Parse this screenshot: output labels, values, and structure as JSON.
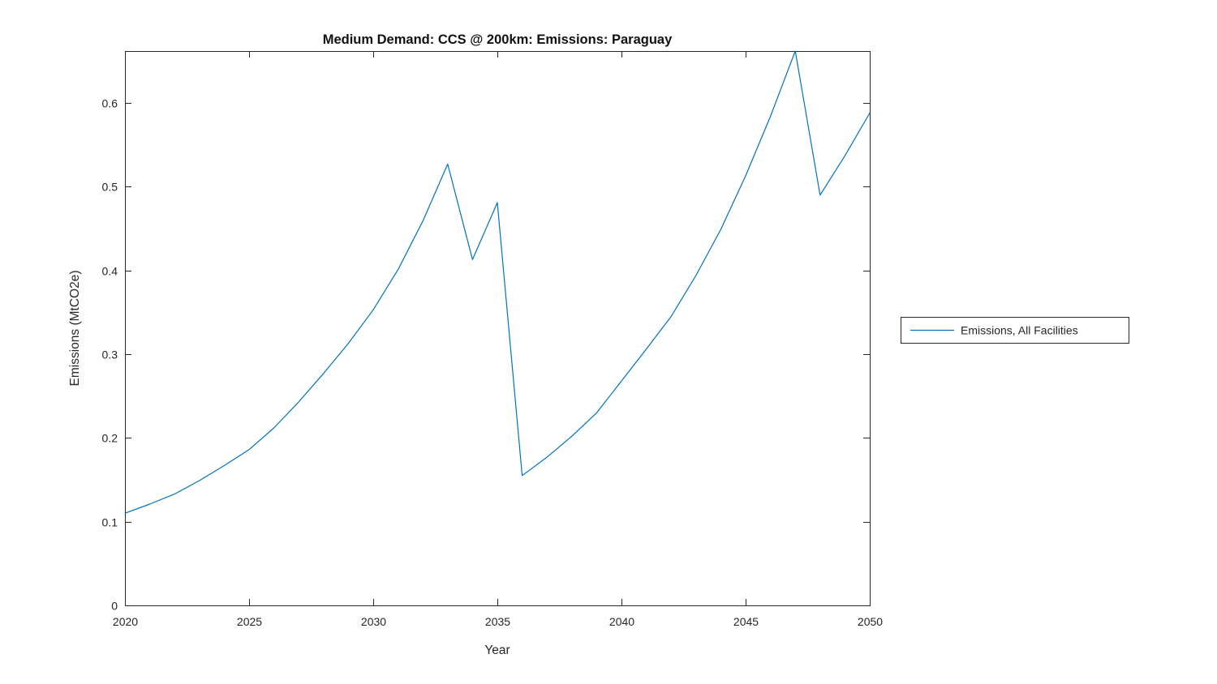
{
  "chart_data": {
    "type": "line",
    "title": "Medium Demand: CCS @ 200km: Emissions: Paraguay",
    "xlabel": "Year",
    "ylabel": "Emissions (MtCO2e)",
    "xlim": [
      2020,
      2050
    ],
    "ylim": [
      0,
      0.662
    ],
    "xticks": [
      2020,
      2025,
      2030,
      2035,
      2040,
      2045,
      2050
    ],
    "yticks": [
      0,
      0.1,
      0.2,
      0.3,
      0.4,
      0.5,
      0.6
    ],
    "ytick_labels": [
      "0",
      "0.1",
      "0.2",
      "0.3",
      "0.4",
      "0.5",
      "0.6"
    ],
    "grid": false,
    "box": true,
    "tick_direction": "in",
    "legend": {
      "position": "outside-right",
      "entries": [
        {
          "label": "Emissions, All Facilities",
          "color": "#0072BD"
        }
      ]
    },
    "series": [
      {
        "name": "Emissions, All Facilities",
        "color": "#0072BD",
        "x": [
          2020,
          2021,
          2022,
          2023,
          2024,
          2025,
          2026,
          2027,
          2028,
          2029,
          2030,
          2031,
          2032,
          2033,
          2034,
          2035,
          2036,
          2037,
          2038,
          2039,
          2040,
          2041,
          2042,
          2043,
          2044,
          2045,
          2046,
          2047,
          2048,
          2049,
          2050
        ],
        "values": [
          0.11,
          0.121,
          0.133,
          0.149,
          0.167,
          0.186,
          0.212,
          0.243,
          0.277,
          0.313,
          0.353,
          0.401,
          0.459,
          0.527,
          0.413,
          0.481,
          0.155,
          0.177,
          0.202,
          0.23,
          0.268,
          0.306,
          0.345,
          0.394,
          0.449,
          0.513,
          0.584,
          0.662,
          0.49,
          0.537,
          0.588
        ]
      }
    ]
  },
  "colors": {
    "line": "#0072BD",
    "axis": "#262626",
    "background": "#ffffff"
  }
}
